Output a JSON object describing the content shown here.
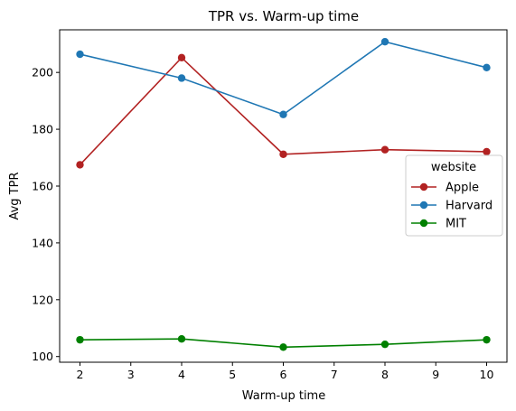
{
  "chart_data": {
    "type": "line",
    "title": "TPR vs. Warm-up time",
    "xlabel": "Warm-up time",
    "ylabel": "Avg TPR",
    "x": [
      2,
      4,
      6,
      8,
      10
    ],
    "xlim": [
      1.6,
      10.4
    ],
    "ylim": [
      98,
      215
    ],
    "xticks": [
      2,
      3,
      4,
      5,
      6,
      7,
      8,
      9,
      10
    ],
    "yticks": [
      100,
      120,
      140,
      160,
      180,
      200
    ],
    "grid": false,
    "legend": {
      "title": "website",
      "placement": "center-right"
    },
    "series": [
      {
        "name": "Apple",
        "color": "#b22222",
        "values": [
          167.5,
          205.2,
          171.2,
          172.8,
          172.1
        ]
      },
      {
        "name": "Harvard",
        "color": "#1f77b4",
        "values": [
          206.4,
          198.0,
          185.2,
          210.8,
          201.7
        ]
      },
      {
        "name": "MIT",
        "color": "#008000",
        "values": [
          105.9,
          106.2,
          103.3,
          104.3,
          105.9
        ]
      }
    ]
  }
}
